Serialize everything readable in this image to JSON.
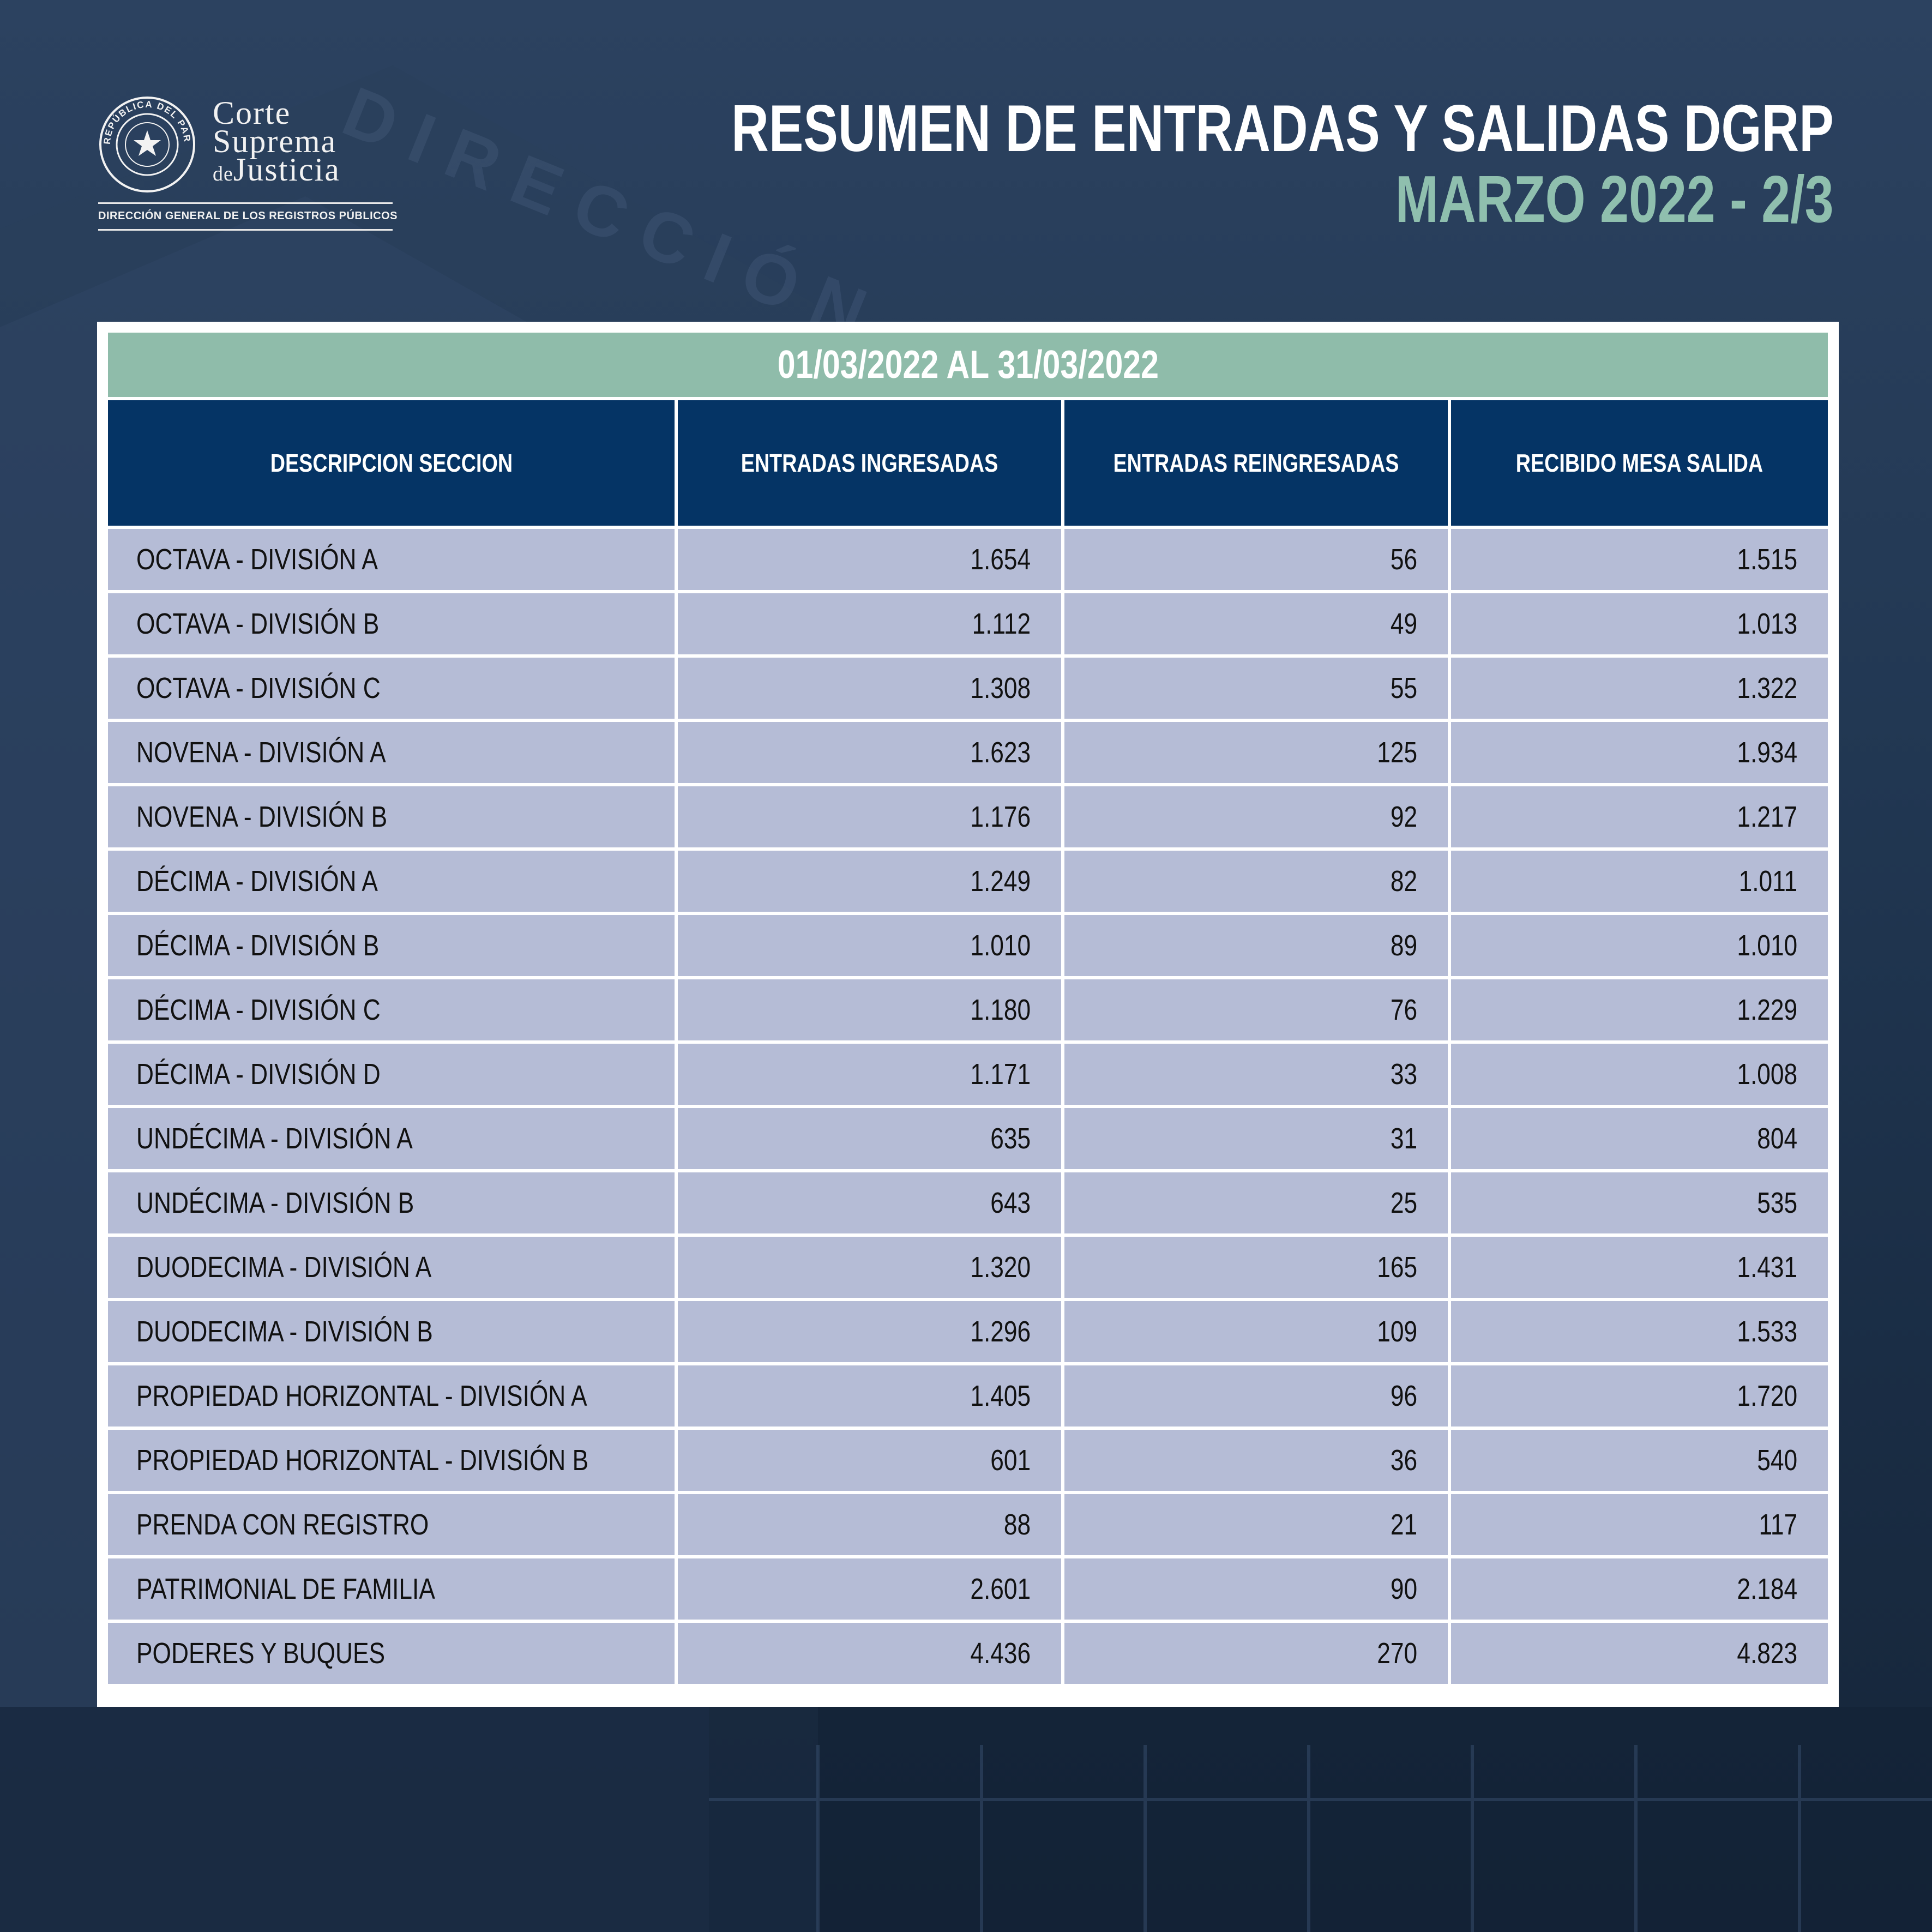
{
  "header": {
    "logo": {
      "line1": "Corte",
      "line2": "Suprema",
      "line3_prefix": "de",
      "line3": "Justicia",
      "seal_text": "REPÚBLICA DEL PARAGUAY",
      "subtitle": "DIRECCIÓN GENERAL DE LOS REGISTROS PÚBLICOS"
    },
    "title": "RESUMEN DE ENTRADAS Y SALIDAS DGRP",
    "subtitle": "MARZO 2022 - 2/3"
  },
  "table": {
    "period": "01/03/2022 AL 31/03/2022",
    "columns": [
      "DESCRIPCION SECCION",
      "ENTRADAS INGRESADAS",
      "ENTRADAS REINGRESADAS",
      "RECIBIDO MESA SALIDA"
    ],
    "rows": [
      [
        "OCTAVA - DIVISIÓN A",
        "1.654",
        "56",
        "1.515"
      ],
      [
        "OCTAVA - DIVISIÓN B",
        "1.112",
        "49",
        "1.013"
      ],
      [
        "OCTAVA - DIVISIÓN C",
        "1.308",
        "55",
        "1.322"
      ],
      [
        "NOVENA - DIVISIÓN A",
        "1.623",
        "125",
        "1.934"
      ],
      [
        "NOVENA - DIVISIÓN B",
        "1.176",
        "92",
        "1.217"
      ],
      [
        "DÉCIMA - DIVISIÓN A",
        "1.249",
        "82",
        "1.011"
      ],
      [
        "DÉCIMA - DIVISIÓN B",
        "1.010",
        "89",
        "1.010"
      ],
      [
        "DÉCIMA - DIVISIÓN C",
        "1.180",
        "76",
        "1.229"
      ],
      [
        "DÉCIMA - DIVISIÓN D",
        "1.171",
        "33",
        "1.008"
      ],
      [
        "UNDÉCIMA - DIVISIÓN A",
        "635",
        "31",
        "804"
      ],
      [
        "UNDÉCIMA - DIVISIÓN B",
        "643",
        "25",
        "535"
      ],
      [
        "DUODECIMA - DIVISIÓN A",
        "1.320",
        "165",
        "1.431"
      ],
      [
        "DUODECIMA - DIVISIÓN B",
        "1.296",
        "109",
        "1.533"
      ],
      [
        "PROPIEDAD HORIZONTAL - DIVISIÓN A",
        "1.405",
        "96",
        "1.720"
      ],
      [
        "PROPIEDAD HORIZONTAL - DIVISIÓN B",
        "601",
        "36",
        "540"
      ],
      [
        "PRENDA CON REGISTRO",
        "88",
        "21",
        "117"
      ],
      [
        "PATRIMONIAL DE FAMILIA",
        "2.601",
        "90",
        "2.184"
      ],
      [
        "PODERES Y BUQUES",
        "4.436",
        "270",
        "4.823"
      ]
    ]
  },
  "colors": {
    "background": "#213752",
    "header_row": "#053465",
    "period_bar": "#8fbcaa",
    "subtitle": "#8fbfae",
    "cell": "#b5bcd6"
  }
}
